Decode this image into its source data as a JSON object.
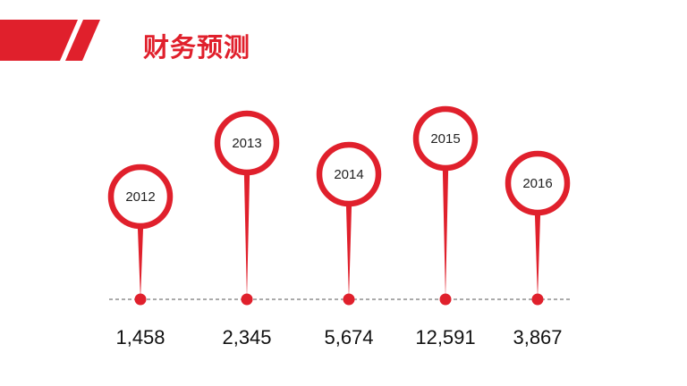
{
  "header": {
    "title": "财务预测"
  },
  "colors": {
    "accent": "#e0202c",
    "baseline": "#555555"
  },
  "chart_data": {
    "type": "pin-timeline",
    "categories": [
      "2012",
      "2013",
      "2014",
      "2015",
      "2016"
    ],
    "values": [
      1458,
      2345,
      5674,
      12591,
      3867
    ],
    "value_labels": [
      "1,458",
      "2,345",
      "5,674",
      "12,591",
      "3,867"
    ]
  }
}
